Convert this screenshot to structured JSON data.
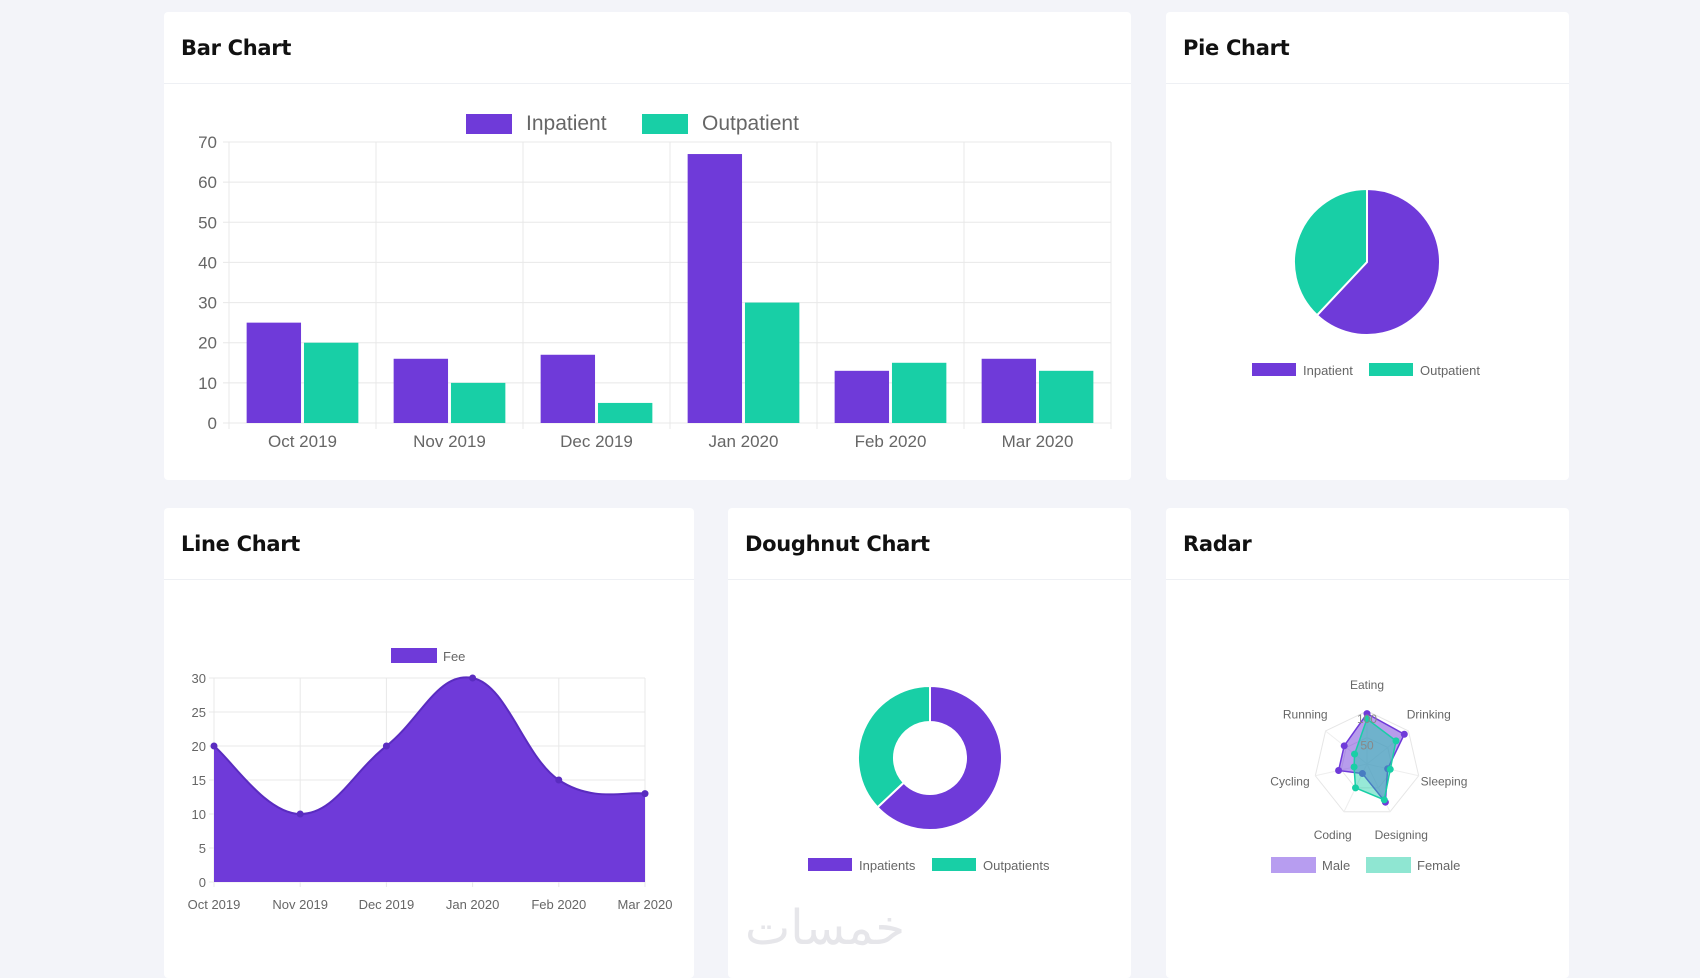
{
  "colors": {
    "purple": "#6f3ad9",
    "teal": "#18cfa6",
    "grid": "#e8e8e8"
  },
  "cards": {
    "bar": "Bar Chart",
    "pie": "Pie Chart",
    "line": "Line Chart",
    "doughnut": "Doughnut Chart",
    "radar": "Radar"
  },
  "watermark": "خمسات",
  "chart_data": [
    {
      "type": "bar",
      "categories": [
        "Oct 2019",
        "Nov 2019",
        "Dec 2019",
        "Jan 2020",
        "Feb 2020",
        "Mar 2020"
      ],
      "series": [
        {
          "name": "Inpatient",
          "values": [
            25,
            16,
            17,
            67,
            13,
            16
          ]
        },
        {
          "name": "Outpatient",
          "values": [
            20,
            10,
            5,
            30,
            15,
            13
          ]
        }
      ],
      "ylim": [
        0,
        70
      ],
      "yticks": [
        "0",
        "10",
        "20",
        "30",
        "40",
        "50",
        "60",
        "70"
      ],
      "grid": true,
      "legend": "top"
    },
    {
      "type": "pie",
      "labels": [
        "Inpatient",
        "Outpatient"
      ],
      "values": [
        62,
        38
      ],
      "legend": "bottom"
    },
    {
      "type": "area",
      "categories": [
        "Oct 2019",
        "Nov 2019",
        "Dec 2019",
        "Jan 2020",
        "Feb 2020",
        "Mar 2020"
      ],
      "series": [
        {
          "name": "Fee",
          "values": [
            20,
            10,
            20,
            30,
            15,
            13
          ]
        }
      ],
      "ylim": [
        0,
        30
      ],
      "yticks": [
        "0",
        "5",
        "10",
        "15",
        "20",
        "25",
        "30"
      ],
      "grid": true,
      "legend": "top"
    },
    {
      "type": "doughnut",
      "labels": [
        "Inpatients",
        "Outpatients"
      ],
      "values": [
        63,
        37
      ],
      "legend": "bottom"
    },
    {
      "type": "radar",
      "labels": [
        "Eating",
        "Drinking",
        "Sleeping",
        "Designing",
        "Coding",
        "Cycling",
        "Running"
      ],
      "series": [
        {
          "name": "Male",
          "values": [
            95,
            90,
            40,
            80,
            20,
            55,
            55
          ]
        },
        {
          "name": "Female",
          "values": [
            85,
            70,
            45,
            75,
            50,
            25,
            30
          ]
        }
      ],
      "rlim": [
        0,
        100
      ],
      "rticks": [
        "50",
        "100"
      ],
      "legend": "bottom"
    }
  ]
}
